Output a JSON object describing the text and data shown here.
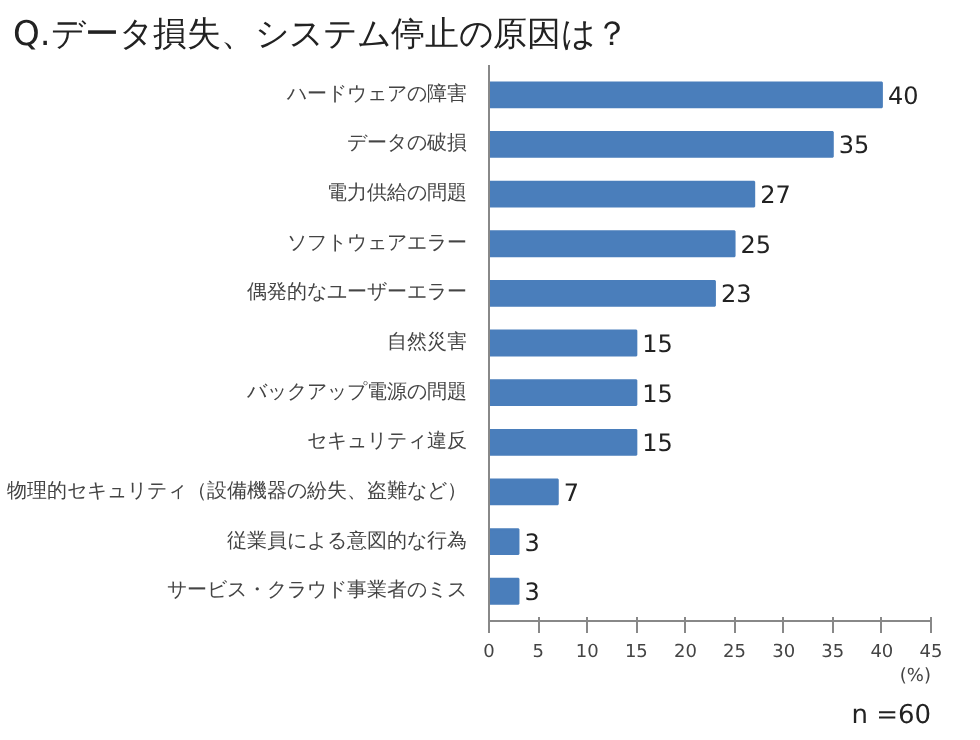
{
  "chart_data": {
    "type": "bar",
    "orientation": "horizontal",
    "title": "Q.データ損失、システム停止の原因は？",
    "xlabel": "(%)",
    "categories": [
      "ハードウェアの障害",
      "データの破損",
      "電力供給の問題",
      "ソフトウェアエラー",
      "偶発的なユーザーエラー",
      "自然災害",
      "バックアップ電源の問題",
      "セキュリティ違反",
      "物理的セキュリティ（設備機器の紛失、盗難など）",
      "従業員による意図的な行為",
      "サービス・クラウド事業者のミス"
    ],
    "values": [
      40,
      35,
      27,
      25,
      23,
      15,
      15,
      15,
      7,
      3,
      3
    ],
    "color": "#4a7ebb",
    "xlim": [
      0,
      45
    ],
    "xticks": [
      0,
      5,
      10,
      15,
      20,
      25,
      30,
      35,
      40,
      45
    ],
    "data_labels": true,
    "grid": false,
    "annotations": [
      "n =60"
    ]
  }
}
